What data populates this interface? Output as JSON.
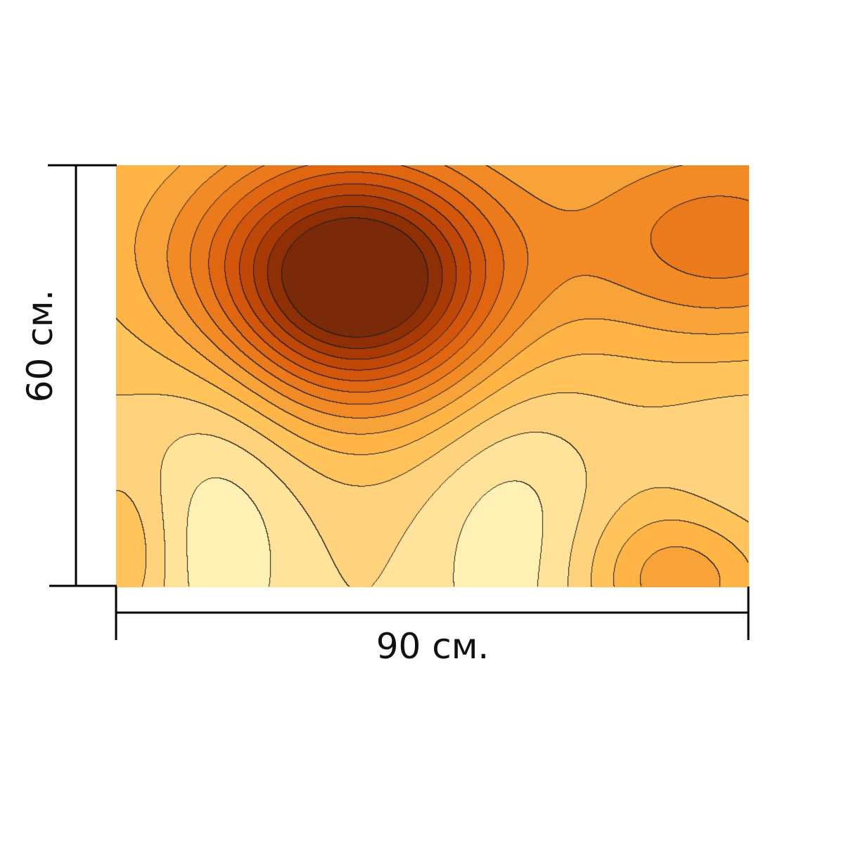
{
  "dimensions": {
    "width_label": "90 см.",
    "height_label": "60 см."
  },
  "artwork": {
    "icon": "contour-map-pattern",
    "palette": [
      "#fff8c8",
      "#fff0b3",
      "#ffe39a",
      "#ffd27e",
      "#ffc45c",
      "#ffb445",
      "#f8a23a",
      "#f28a25",
      "#eb7a1c",
      "#e06612",
      "#d2560c",
      "#bf4708",
      "#a93a05",
      "#8f2f05",
      "#7a2a08"
    ],
    "line_color": "#1a1a1a"
  }
}
